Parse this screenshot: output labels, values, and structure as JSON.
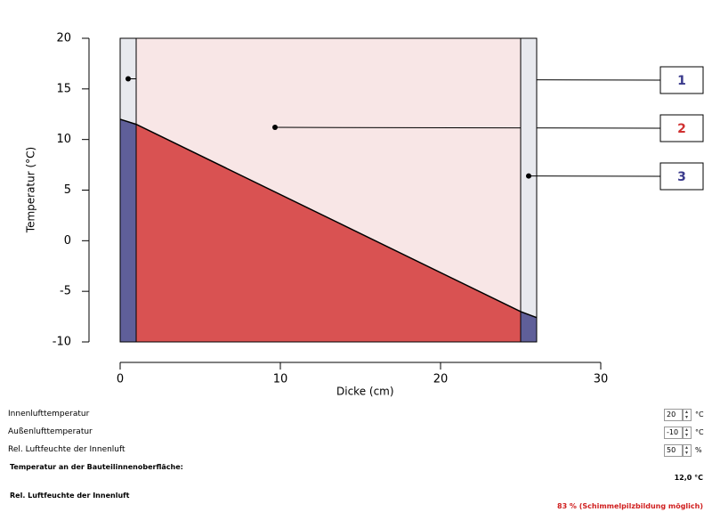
{
  "chart_data": {
    "type": "layers",
    "xlabel": "Dicke (cm)",
    "ylabel": "Temperatur (°C)",
    "x": [
      0,
      1,
      25,
      26
    ],
    "temperature": [
      12.0,
      11.5,
      -7.0,
      -7.6
    ],
    "line_color": "#000000",
    "layers": [
      {
        "label": "1",
        "color": "#5f5f99",
        "air_color": "#e8e9ee",
        "label_color": "#3a3a8c"
      },
      {
        "label": "2",
        "color": "#d95252",
        "air_color": "#f8e6e6",
        "label_color": "#d03030"
      },
      {
        "label": "3",
        "color": "#5f5f99",
        "air_color": "#e8e9ee",
        "label_color": "#3a3a8c"
      }
    ],
    "xlim": [
      0,
      30
    ],
    "xticks": [
      0,
      10,
      20,
      30
    ],
    "ylim": [
      -10,
      20
    ],
    "yticks": [
      -10,
      -5,
      0,
      5,
      10,
      15,
      20
    ]
  },
  "inputs": [
    {
      "label": "Innenlufttemperatur",
      "value": 20,
      "unit": "°C"
    },
    {
      "label": "Außenlufttemperatur",
      "value": -10,
      "unit": "°C"
    },
    {
      "label": "Rel. Luftfeuchte der Innenluft",
      "value": 50,
      "unit": "%"
    }
  ],
  "results": [
    {
      "label": "Temperatur an der Bauteilinnenoberfläche:",
      "value": "12,0 °C",
      "color": "#000000"
    },
    {
      "label": "Rel. Luftfeuchte der Innenluft",
      "value": "83 % (Schimmelpilzbildung möglich)",
      "color": "#d02020"
    }
  ]
}
